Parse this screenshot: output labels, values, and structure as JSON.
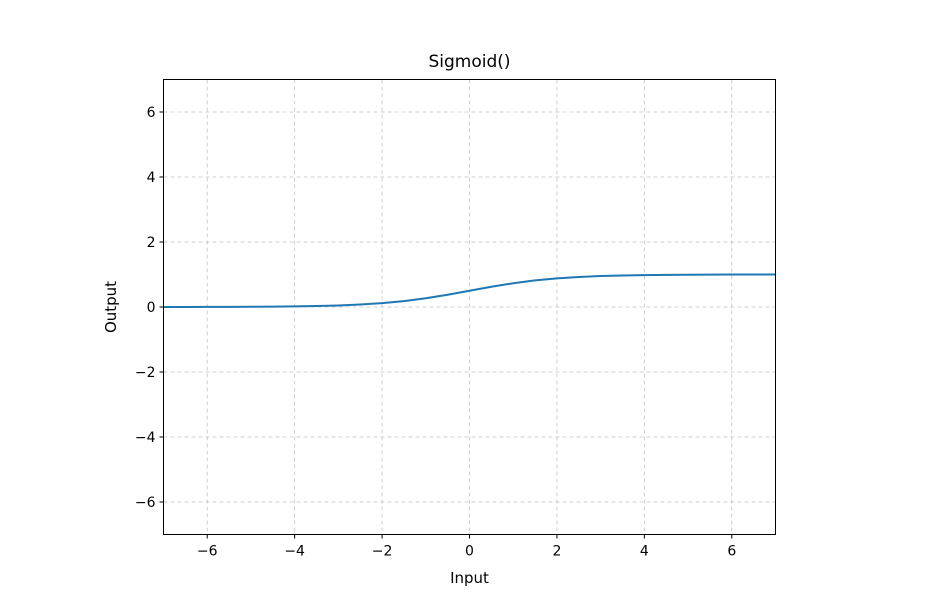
{
  "chart_data": {
    "type": "line",
    "title": "Sigmoid()",
    "xlabel": "Input",
    "ylabel": "Output",
    "xlim": [
      -7,
      7
    ],
    "ylim": [
      -7,
      7
    ],
    "x_ticks": [
      -6,
      -4,
      -2,
      0,
      2,
      4,
      6
    ],
    "y_ticks": [
      -6,
      -4,
      -2,
      0,
      2,
      4,
      6
    ],
    "x_tick_labels": [
      "−6",
      "−4",
      "−2",
      "0",
      "2",
      "4",
      "6"
    ],
    "y_tick_labels": [
      "−6",
      "−4",
      "−2",
      "0",
      "2",
      "4",
      "6"
    ],
    "grid": true,
    "line_color": "#1f77b4",
    "series": [
      {
        "x": [
          -7,
          -6.5,
          -6,
          -5.5,
          -5,
          -4.5,
          -4,
          -3.5,
          -3,
          -2.5,
          -2,
          -1.5,
          -1,
          -0.5,
          0,
          0.5,
          1,
          1.5,
          2,
          2.5,
          3,
          3.5,
          4,
          4.5,
          5,
          5.5,
          6,
          6.5,
          7
        ],
        "y": [
          0.001,
          0.0015,
          0.0025,
          0.0041,
          0.0067,
          0.011,
          0.018,
          0.029,
          0.047,
          0.076,
          0.119,
          0.182,
          0.269,
          0.378,
          0.5,
          0.622,
          0.731,
          0.818,
          0.881,
          0.924,
          0.953,
          0.971,
          0.982,
          0.989,
          0.993,
          0.996,
          0.998,
          0.9985,
          0.999
        ]
      }
    ]
  }
}
